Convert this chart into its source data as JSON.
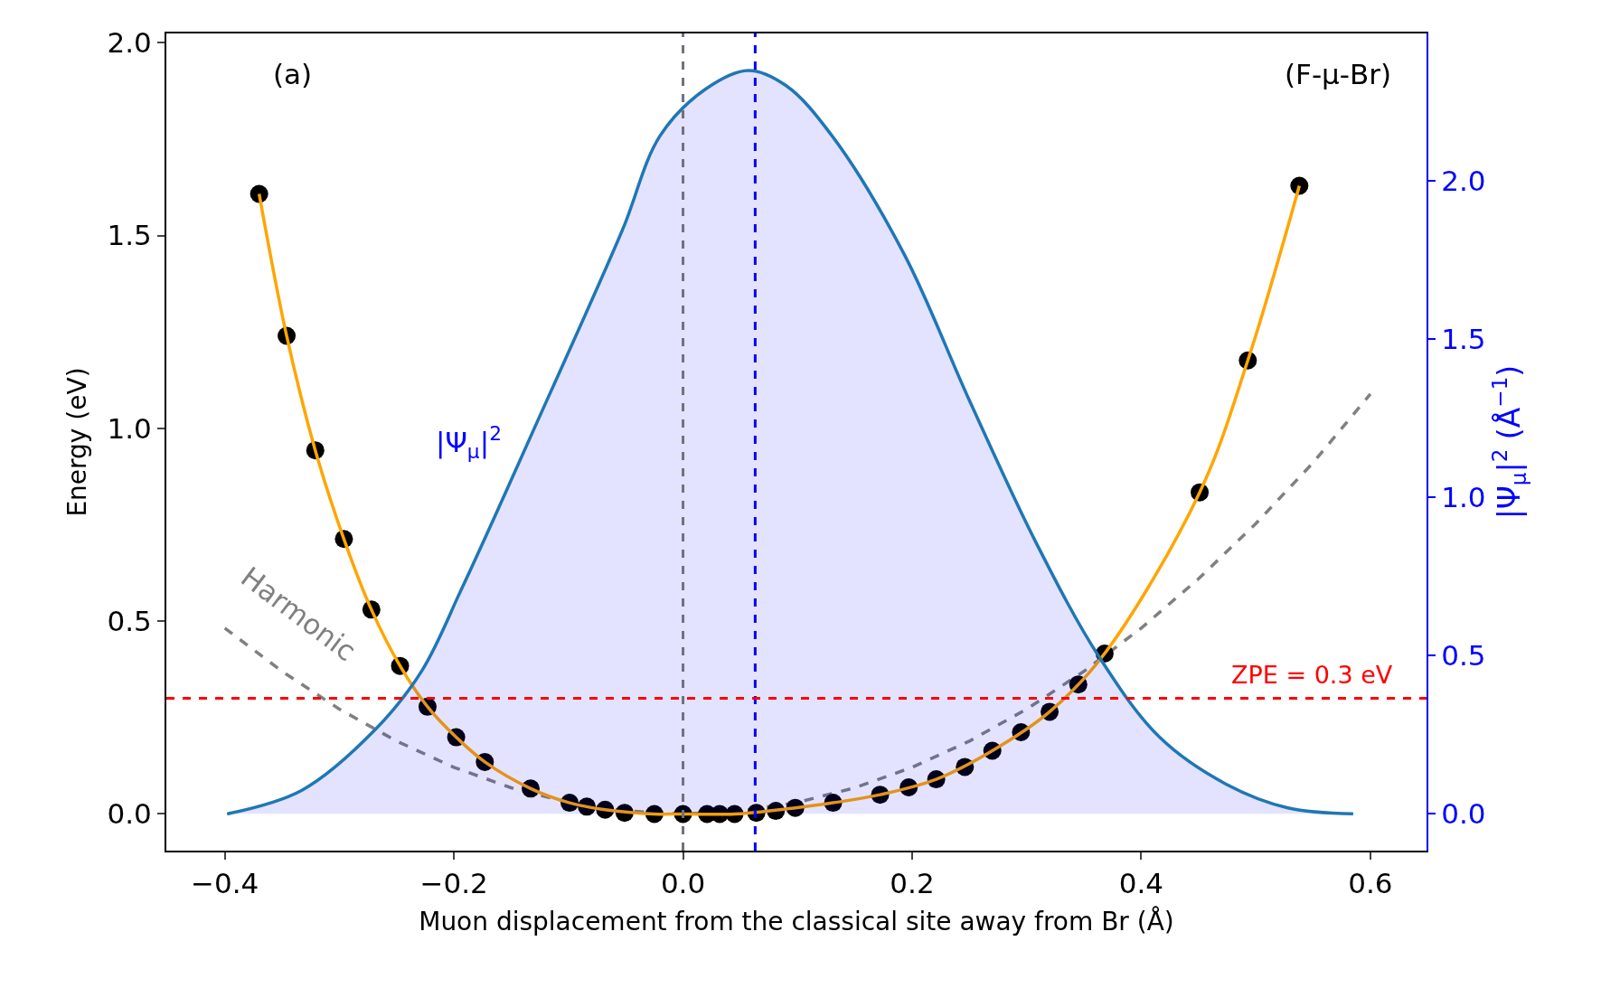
{
  "chart_data": {
    "type": "scatter",
    "xlabel": "Muon displacement from the classical site away from Br (Å)",
    "ylabel": "Energy (eV)",
    "y2label": "|Ψ$_{μ}$|$^{2}$ (Å$^{−1}$)",
    "xlim": [
      -0.451,
      0.649
    ],
    "xticks": [
      {
        "value": -0.4,
        "label": "−0.4"
      },
      {
        "value": -0.2,
        "label": "−0.2"
      },
      {
        "value": 0,
        "label": "0.0"
      },
      {
        "value": 0.2,
        "label": "0.2"
      },
      {
        "value": 0.4,
        "label": "0.4"
      },
      {
        "value": 0.6,
        "label": "0.6"
      }
    ],
    "ylim": [
      -0.095,
      2.024
    ],
    "yticks": [
      {
        "value": 0,
        "label": "0.0"
      },
      {
        "value": 0.5,
        "label": "0.5"
      },
      {
        "value": 1,
        "label": "1.0"
      },
      {
        "value": 1.5,
        "label": "1.5"
      },
      {
        "value": 2,
        "label": "2.0"
      }
    ],
    "y2lim": [
      -0.116,
      2.465
    ],
    "y2ticks": [
      {
        "value": 0,
        "label": "0.0"
      },
      {
        "value": 0.5,
        "label": "0.5"
      },
      {
        "value": 1,
        "label": "1.0"
      },
      {
        "value": 1.5,
        "label": "1.5"
      },
      {
        "value": 2,
        "label": "2.0"
      }
    ],
    "annotations": [
      "(a)",
      "(F-μ-Br)",
      "|Ψ$_{μ}$|$^{2}$",
      "Harmonic"
    ],
    "ref_lines": [
      {
        "axis": "x",
        "value": 0,
        "color": "#707080",
        "line_style": "dashed"
      },
      {
        "axis": "x",
        "value": 0.063,
        "color": "#0000ff",
        "line_style": "dashed"
      },
      {
        "axis": "y",
        "value": 0.3,
        "label": "ZPE = 0.3 eV",
        "color": "#ff0000",
        "line_style": "dashed"
      }
    ],
    "series": [
      {
        "type": "area",
        "axis": "y2",
        "color": "#1f77b4",
        "marker": "none",
        "x": [
          -0.398,
          -0.333,
          -0.269,
          -0.228,
          -0.193,
          -0.156,
          -0.12,
          -0.084,
          -0.052,
          -0.02,
          0.02,
          0.057,
          0.09,
          0.13,
          0.193,
          0.25,
          0.308,
          0.363,
          0.416,
          0.474,
          0.528,
          0.585
        ],
        "values": [
          0,
          0.074,
          0.265,
          0.452,
          0.713,
          1.006,
          1.297,
          1.587,
          1.852,
          2.142,
          2.29,
          2.348,
          2.3,
          2.142,
          1.768,
          1.306,
          0.858,
          0.497,
          0.242,
          0.094,
          0.019,
          0
        ]
      },
      {
        "type": "line",
        "color": "#808080",
        "marker": "none",
        "line_style": "dashed",
        "x": [
          -0.4,
          -0.35,
          -0.3,
          -0.25,
          -0.2,
          -0.15,
          -0.1,
          -0.05,
          0,
          0.05,
          0.1,
          0.15,
          0.2,
          0.25,
          0.3,
          0.35,
          0.4,
          0.45,
          0.5,
          0.55,
          0.6
        ],
        "values": [
          0.482,
          0.37,
          0.272,
          0.189,
          0.121,
          0.068,
          0.03,
          0.008,
          0,
          0.008,
          0.03,
          0.068,
          0.121,
          0.189,
          0.272,
          0.37,
          0.482,
          0.61,
          0.753,
          0.911,
          1.089
        ]
      },
      {
        "color": "#000000",
        "marker": "circle",
        "x": [
          -0.37,
          -0.346,
          -0.321,
          -0.296,
          -0.272,
          -0.247,
          -0.223,
          -0.198,
          -0.173,
          -0.133,
          -0.099,
          -0.084,
          -0.068,
          -0.051,
          -0.025,
          0,
          0.021,
          0.032,
          0.045,
          0.064,
          0.081,
          0.098,
          0.131,
          0.172,
          0.197,
          0.221,
          0.246,
          0.27,
          0.295,
          0.32,
          0.345,
          0.368,
          0.451,
          0.493,
          0.538
        ],
        "values": [
          1.608,
          1.24,
          0.943,
          0.713,
          0.53,
          0.384,
          0.278,
          0.199,
          0.135,
          0.066,
          0.029,
          0.019,
          0.011,
          0.003,
          0,
          0,
          0,
          0,
          0,
          0.003,
          0.008,
          0.016,
          0.029,
          0.05,
          0.069,
          0.09,
          0.122,
          0.164,
          0.212,
          0.265,
          0.336,
          0.416,
          0.834,
          1.176,
          1.629
        ]
      },
      {
        "type": "line",
        "color": "#ffa500",
        "marker": "none",
        "x": [
          -0.37,
          -0.346,
          -0.321,
          -0.296,
          -0.272,
          -0.247,
          -0.223,
          -0.198,
          -0.173,
          -0.133,
          -0.099,
          -0.068,
          -0.025,
          0,
          0.045,
          0.098,
          0.131,
          0.172,
          0.221,
          0.27,
          0.32,
          0.368,
          0.451,
          0.493,
          0.538
        ],
        "values": [
          1.608,
          1.24,
          0.943,
          0.713,
          0.53,
          0.384,
          0.278,
          0.199,
          0.135,
          0.066,
          0.029,
          0.011,
          0,
          0,
          0,
          0.016,
          0.029,
          0.05,
          0.09,
          0.164,
          0.265,
          0.416,
          0.834,
          1.176,
          1.629
        ]
      }
    ]
  }
}
